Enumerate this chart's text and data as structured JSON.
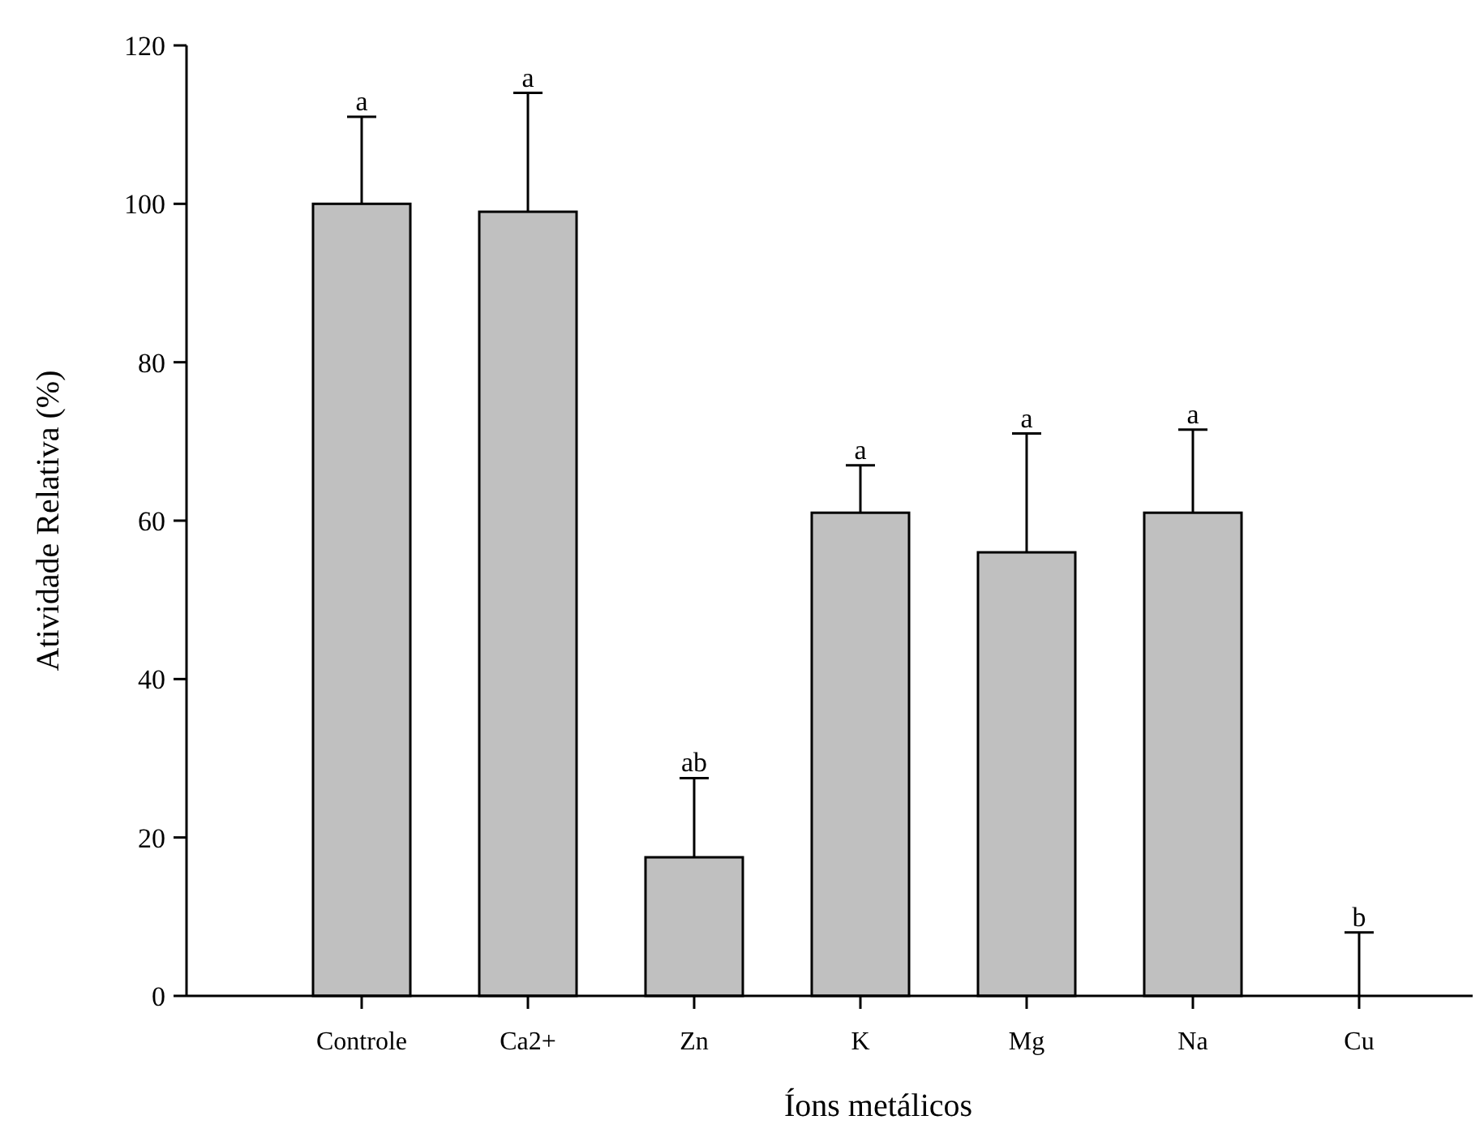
{
  "chart_data": {
    "type": "bar",
    "xlabel": "Íons metálicos",
    "ylabel": "Atividade Relativa (%)",
    "categories": [
      "Controle",
      "Ca2+",
      "Zn",
      "K",
      "Mg",
      "Na",
      "Cu"
    ],
    "values": [
      100,
      99,
      17.5,
      61,
      56,
      61,
      0
    ],
    "color": "#c0c0c0",
    "errors": [
      [
        100,
        111
      ],
      [
        99,
        114
      ],
      [
        17.5,
        27.5
      ],
      [
        61,
        67
      ],
      [
        56,
        71
      ],
      [
        61,
        71.5
      ],
      [
        0,
        8
      ]
    ],
    "ylim": [
      0,
      120
    ],
    "yticks": [
      0,
      20,
      40,
      60,
      80,
      100,
      120
    ],
    "annotations": [
      {
        "text": "a",
        "x": "Controle",
        "y": 111
      },
      {
        "text": "a",
        "x": "Ca2+",
        "y": 114
      },
      {
        "text": "ab",
        "x": "Zn",
        "y": 27.5
      },
      {
        "text": "a",
        "x": "K",
        "y": 67
      },
      {
        "text": "a",
        "x": "Mg",
        "y": 71
      },
      {
        "text": "a",
        "x": "Na",
        "y": 71.5
      },
      {
        "text": "b",
        "x": "Cu",
        "y": 8
      }
    ]
  }
}
